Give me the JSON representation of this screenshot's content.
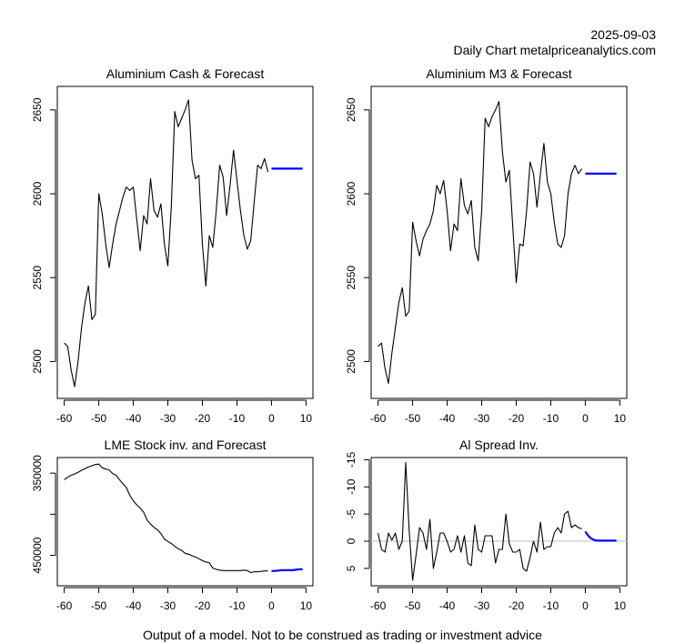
{
  "header": {
    "date": "2025-09-03",
    "subtitle": "Daily Chart metalpriceanalytics.com"
  },
  "footer": "Output of a model. Not to be construed as trading or investment advice",
  "colors": {
    "history": "#000000",
    "forecast": "#0000ff",
    "zero_line": "#bebebe"
  },
  "chart_data": [
    {
      "id": "cash",
      "type": "line",
      "title": "Aluminium Cash & Forecast",
      "xlabel": "",
      "ylabel": "",
      "xlim": [
        -62,
        12
      ],
      "ylim": [
        2478,
        2664
      ],
      "y_inverted": false,
      "xticks": [
        -60,
        -50,
        -40,
        -30,
        -20,
        -10,
        0,
        10
      ],
      "yticks": [
        2500,
        2550,
        2600,
        2650
      ],
      "ytick_labels": [
        "2500",
        "2550",
        "2600",
        "2650"
      ],
      "grid": false,
      "series": [
        {
          "name": "history",
          "color": "#000000",
          "x": [
            -60,
            -59,
            -58,
            -57,
            -56,
            -55,
            -54,
            -53,
            -52,
            -51,
            -50,
            -49,
            -48,
            -47,
            -46,
            -45,
            -44,
            -43,
            -42,
            -41,
            -40,
            -39,
            -38,
            -37,
            -36,
            -35,
            -34,
            -33,
            -32,
            -31,
            -30,
            -29,
            -28,
            -27,
            -26,
            -25,
            -24,
            -23,
            -22,
            -21,
            -20,
            -19,
            -18,
            -17,
            -16,
            -15,
            -14,
            -13,
            -12,
            -11,
            -10,
            -9,
            -8,
            -7,
            -6,
            -5,
            -4,
            -3,
            -2,
            -1
          ],
          "y": [
            2511,
            2509,
            2495,
            2485,
            2500,
            2520,
            2535,
            2545,
            2525,
            2528,
            2600,
            2588,
            2570,
            2556,
            2570,
            2582,
            2590,
            2598,
            2604,
            2602,
            2604,
            2585,
            2566,
            2587,
            2582,
            2609,
            2590,
            2586,
            2594,
            2570,
            2557,
            2592,
            2649,
            2640,
            2645,
            2650,
            2656,
            2620,
            2609,
            2611,
            2570,
            2545,
            2575,
            2568,
            2590,
            2617,
            2610,
            2587,
            2605,
            2626,
            2608,
            2590,
            2575,
            2567,
            2572,
            2595,
            2617,
            2615,
            2621,
            2613
          ]
        },
        {
          "name": "forecast",
          "color": "#0000ff",
          "x": [
            0,
            1,
            2,
            3,
            4,
            5,
            6,
            7,
            8,
            9
          ],
          "y": [
            2615,
            2615,
            2615,
            2615,
            2615,
            2615,
            2615,
            2615,
            2615,
            2615
          ]
        }
      ]
    },
    {
      "id": "m3",
      "type": "line",
      "title": "Aluminium M3 & Forecast",
      "xlabel": "",
      "ylabel": "",
      "xlim": [
        -62,
        12
      ],
      "ylim": [
        2478,
        2664
      ],
      "y_inverted": false,
      "xticks": [
        -60,
        -50,
        -40,
        -30,
        -20,
        -10,
        0,
        10
      ],
      "yticks": [
        2500,
        2550,
        2600,
        2650
      ],
      "ytick_labels": [
        "2500",
        "2550",
        "2600",
        "2650"
      ],
      "grid": false,
      "series": [
        {
          "name": "history",
          "color": "#000000",
          "x": [
            -60,
            -59,
            -58,
            -57,
            -56,
            -55,
            -54,
            -53,
            -52,
            -51,
            -50,
            -49,
            -48,
            -47,
            -46,
            -45,
            -44,
            -43,
            -42,
            -41,
            -40,
            -39,
            -38,
            -37,
            -36,
            -35,
            -34,
            -33,
            -32,
            -31,
            -30,
            -29,
            -28,
            -27,
            -26,
            -25,
            -24,
            -23,
            -22,
            -21,
            -20,
            -19,
            -18,
            -17,
            -16,
            -15,
            -14,
            -13,
            -12,
            -11,
            -10,
            -9,
            -8,
            -7,
            -6,
            -5,
            -4,
            -3,
            -2,
            -1
          ],
          "y": [
            2509,
            2511,
            2496,
            2487,
            2505,
            2520,
            2535,
            2544,
            2527,
            2530,
            2583,
            2572,
            2563,
            2573,
            2578,
            2582,
            2590,
            2605,
            2600,
            2608,
            2590,
            2566,
            2582,
            2578,
            2609,
            2593,
            2588,
            2596,
            2568,
            2560,
            2590,
            2645,
            2640,
            2646,
            2650,
            2655,
            2625,
            2607,
            2614,
            2580,
            2547,
            2570,
            2569,
            2590,
            2619,
            2612,
            2592,
            2612,
            2630,
            2607,
            2600,
            2583,
            2570,
            2568,
            2575,
            2600,
            2612,
            2617,
            2612,
            2615
          ]
        },
        {
          "name": "forecast",
          "color": "#0000ff",
          "x": [
            0,
            1,
            2,
            3,
            4,
            5,
            6,
            7,
            8,
            9
          ],
          "y": [
            2612,
            2612,
            2612,
            2612,
            2612,
            2612,
            2612,
            2612,
            2612,
            2612
          ]
        }
      ]
    },
    {
      "id": "stock",
      "type": "line",
      "title": "LME Stock inv. and Forecast",
      "xlabel": "",
      "ylabel": "",
      "xlim": [
        -62,
        12
      ],
      "ylim": [
        331000,
        487000
      ],
      "y_inverted": true,
      "xticks": [
        -60,
        -50,
        -40,
        -30,
        -20,
        -10,
        0,
        10
      ],
      "yticks": [
        350000,
        400000,
        450000
      ],
      "ytick_labels": [
        "350000",
        "",
        "450000"
      ],
      "grid": false,
      "series": [
        {
          "name": "history",
          "color": "#000000",
          "x": [
            -60,
            -59,
            -58,
            -57,
            -56,
            -55,
            -54,
            -53,
            -52,
            -51,
            -50,
            -49,
            -48,
            -47,
            -46,
            -45,
            -44,
            -43,
            -42,
            -41,
            -40,
            -39,
            -38,
            -37,
            -36,
            -35,
            -34,
            -33,
            -32,
            -31,
            -30,
            -29,
            -28,
            -27,
            -26,
            -25,
            -24,
            -23,
            -22,
            -21,
            -20,
            -19,
            -18,
            -17,
            -16,
            -15,
            -14,
            -13,
            -12,
            -11,
            -10,
            -9,
            -8,
            -7,
            -6,
            -5,
            -4,
            -3,
            -2,
            -1
          ],
          "y": [
            358000,
            355000,
            352500,
            351000,
            349000,
            346500,
            344500,
            342500,
            341000,
            339500,
            339000,
            343500,
            345000,
            346000,
            350500,
            352500,
            358000,
            363000,
            367500,
            377000,
            383500,
            388500,
            392500,
            397500,
            407000,
            412000,
            416000,
            419000,
            423500,
            430000,
            433000,
            435500,
            439000,
            442000,
            444000,
            447500,
            448500,
            450500,
            452000,
            454000,
            456500,
            458000,
            459000,
            465500,
            467000,
            468000,
            468500,
            468500,
            468500,
            468500,
            468500,
            468500,
            468000,
            468500,
            471000,
            470000,
            470000,
            469500,
            469000,
            469000
          ]
        },
        {
          "name": "forecast",
          "color": "#0000ff",
          "x": [
            0,
            1,
            2,
            3,
            4,
            5,
            6,
            7,
            8,
            9
          ],
          "y": [
            469000,
            469000,
            468500,
            468000,
            468000,
            468000,
            468000,
            467500,
            467000,
            467000
          ]
        }
      ]
    },
    {
      "id": "spread",
      "type": "line",
      "title": "Al Spread Inv.",
      "xlabel": "",
      "ylabel": "",
      "xlim": [
        -62,
        12
      ],
      "ylim": [
        -15.4,
        8.2
      ],
      "y_inverted": true,
      "xticks": [
        -60,
        -50,
        -40,
        -30,
        -20,
        -10,
        0,
        10
      ],
      "yticks": [
        -15,
        -10,
        -5,
        0,
        5
      ],
      "ytick_labels": [
        "-15",
        "-10",
        "-5",
        "0",
        "5"
      ],
      "grid": false,
      "reference_line": 0,
      "series": [
        {
          "name": "history",
          "color": "#000000",
          "x": [
            -60,
            -59,
            -58,
            -57,
            -56,
            -55,
            -54,
            -53,
            -52,
            -51,
            -50,
            -49,
            -48,
            -47,
            -46,
            -45,
            -44,
            -43,
            -42,
            -41,
            -40,
            -39,
            -38,
            -37,
            -36,
            -35,
            -34,
            -33,
            -32,
            -31,
            -30,
            -29,
            -28,
            -27,
            -26,
            -25,
            -24,
            -23,
            -22,
            -21,
            -20,
            -19,
            -18,
            -17,
            -16,
            -15,
            -14,
            -13,
            -12,
            -11,
            -10,
            -9,
            -8,
            -7,
            -6,
            -5,
            -4,
            -3,
            -2,
            -1
          ],
          "y": [
            -1.5,
            1.5,
            2,
            -1.5,
            -0.2,
            -1.5,
            1.5,
            0,
            -14.5,
            -2,
            7.2,
            2.5,
            -2.5,
            -1.5,
            1.5,
            -4,
            5,
            2,
            -1.5,
            -1.5,
            0,
            2,
            1.5,
            -1,
            2,
            -1,
            4,
            4.5,
            -3,
            1.5,
            2,
            -1,
            -1,
            -1,
            4,
            1.5,
            1.5,
            -5,
            0.5,
            2,
            2,
            1.5,
            5,
            5.5,
            3,
            0,
            2,
            -3.5,
            1.5,
            1,
            1,
            -1.5,
            -2.5,
            -1.5,
            -5,
            -5.5,
            -2.5,
            -3,
            -2.5,
            -2.3
          ]
        },
        {
          "name": "forecast",
          "color": "#0000ff",
          "x": [
            0,
            0.5,
            1,
            1.5,
            2,
            2.5,
            3,
            4,
            5,
            6,
            7,
            8,
            9
          ],
          "y": [
            -1.8,
            -1.3,
            -0.9,
            -0.6,
            -0.4,
            -0.25,
            -0.15,
            -0.1,
            -0.1,
            -0.1,
            -0.1,
            -0.1,
            -0.1
          ]
        }
      ]
    }
  ]
}
